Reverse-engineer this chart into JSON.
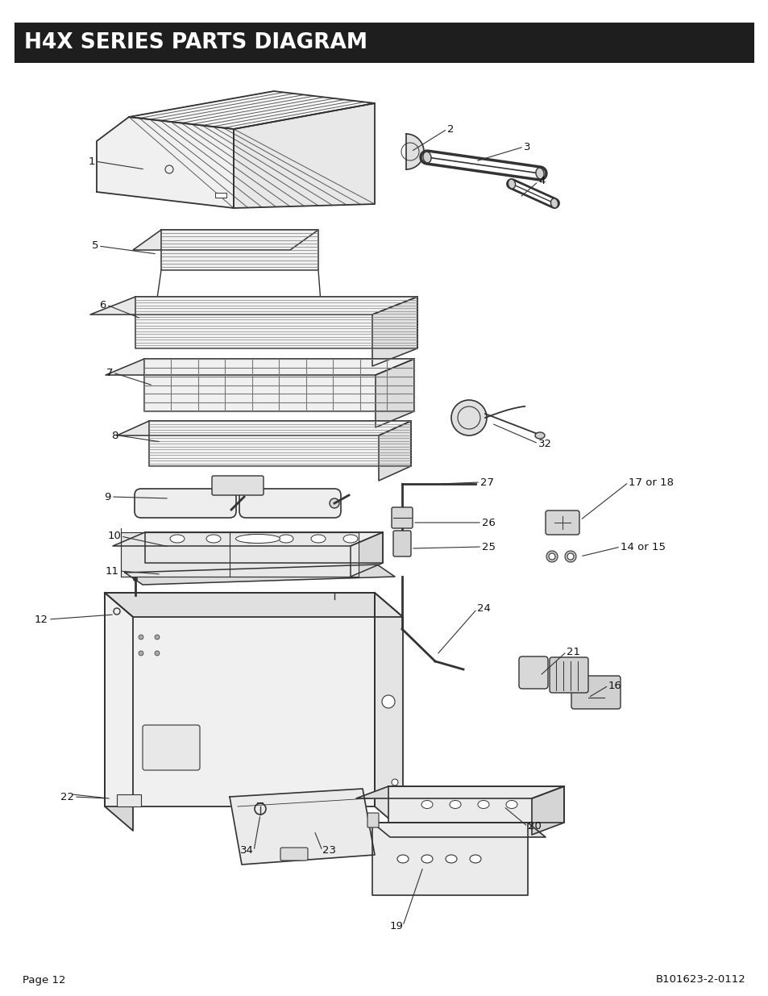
{
  "title": "H4X SERIES PARTS DIAGRAM",
  "title_bg": "#1e1e1e",
  "title_color": "#ffffff",
  "title_fontsize": 19,
  "page_label": "Page 12",
  "doc_label": "B101623-2-0112",
  "bg_color": "#ffffff",
  "line_color": "#333333"
}
